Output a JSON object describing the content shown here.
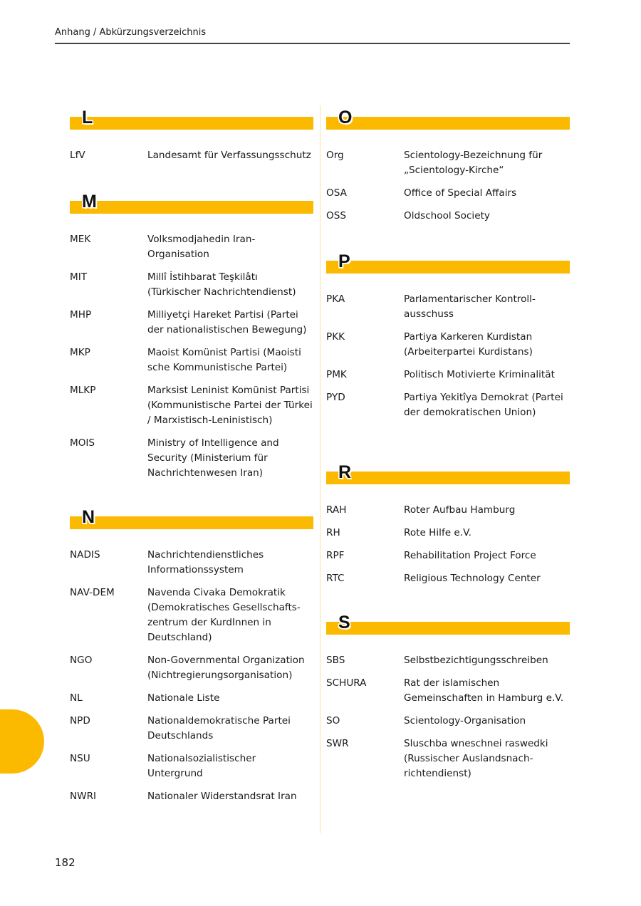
{
  "header": {
    "title": "Anhang / Abkürzungsverzeichnis"
  },
  "page_number": "182",
  "colors": {
    "accent": "#fbb900"
  },
  "left_column": [
    {
      "letter": "L",
      "entries": [
        {
          "abbr": "LfV",
          "def": "Landesamt für Verfassungsschutz"
        }
      ]
    },
    {
      "letter": "M",
      "entries": [
        {
          "abbr": "MEK",
          "def": "Volksmodjahedin Iran-Organisation"
        },
        {
          "abbr": "MIT",
          "def": "Millî İstihbarat Teşkilâtı (Türkischer Nachrichtendienst)"
        },
        {
          "abbr": "MHP",
          "def": "Milliyetçi Hareket Partisi (Partei der nationalistischen Bewegung)"
        },
        {
          "abbr": "MKP",
          "def": "Maoist Komünist Partisi (Maoisti sche Kommunistische Partei)"
        },
        {
          "abbr": "MLKP",
          "def": "Marksist Leninist Komünist Partisi (Kommunistische Partei der Türkei / Marxistisch-Leninistisch)"
        },
        {
          "abbr": "MOIS",
          "def": "Ministry of Intelligence and Security (Ministerium für Nachrichtenwesen Iran)"
        }
      ]
    },
    {
      "letter": "N",
      "entries": [
        {
          "abbr": "NADIS",
          "def": "Nachrichtendienstliches Informationssystem"
        },
        {
          "abbr": "NAV-DEM",
          "def": "Navenda Civaka Demokratik (Demokratisches Gesellschafts-zentrum der KurdInnen in Deutschland)"
        },
        {
          "abbr": "NGO",
          "def": "Non-Governmental Organization (Nichtregierungsorganisation)"
        },
        {
          "abbr": "NL",
          "def": "Nationale Liste"
        },
        {
          "abbr": "NPD",
          "def": "Nationaldemokratische Partei Deutschlands"
        },
        {
          "abbr": "NSU",
          "def": "Nationalsozialistischer Untergrund"
        },
        {
          "abbr": "NWRI",
          "def": "Nationaler Widerstandsrat Iran"
        }
      ]
    }
  ],
  "right_column": [
    {
      "letter": "O",
      "entries": [
        {
          "abbr": "Org",
          "def": "Scientology-Bezeichnung für „Scientology-Kirche“"
        },
        {
          "abbr": "OSA",
          "def": "Office of Special Affairs"
        },
        {
          "abbr": "OSS",
          "def": "Oldschool Society"
        }
      ]
    },
    {
      "letter": "P",
      "entries": [
        {
          "abbr": "PKA",
          "def": "Parlamentarischer Kontroll-ausschuss"
        },
        {
          "abbr": "PKK",
          "def": "Partiya Karkeren Kurdistan (Arbeiterpartei Kurdistans)"
        },
        {
          "abbr": "PMK",
          "def": "Politisch Motivierte Kriminalität"
        },
        {
          "abbr": "PYD",
          "def": "Partiya Yekitîya Demokrat (Partei der demokratischen Union)"
        }
      ]
    },
    {
      "letter": "R",
      "entries": [
        {
          "abbr": "RAH",
          "def": "Roter Aufbau Hamburg"
        },
        {
          "abbr": "RH",
          "def": "Rote Hilfe e.V."
        },
        {
          "abbr": "RPF",
          "def": "Rehabilitation Project Force"
        },
        {
          "abbr": "RTC",
          "def": "Religious Technology Center"
        }
      ]
    },
    {
      "letter": "S",
      "entries": [
        {
          "abbr": "SBS",
          "def": "Selbstbezichtigungsschreiben"
        },
        {
          "abbr": "SCHURA",
          "def": "Rat der islamischen Gemeinschaften in Hamburg e.V."
        },
        {
          "abbr": "SO",
          "def": "Scientology-Organisation"
        },
        {
          "abbr": "SWR",
          "def": "Sluschba wneschnei raswedki (Russischer Auslandsnach-richtendienst)"
        }
      ]
    }
  ]
}
